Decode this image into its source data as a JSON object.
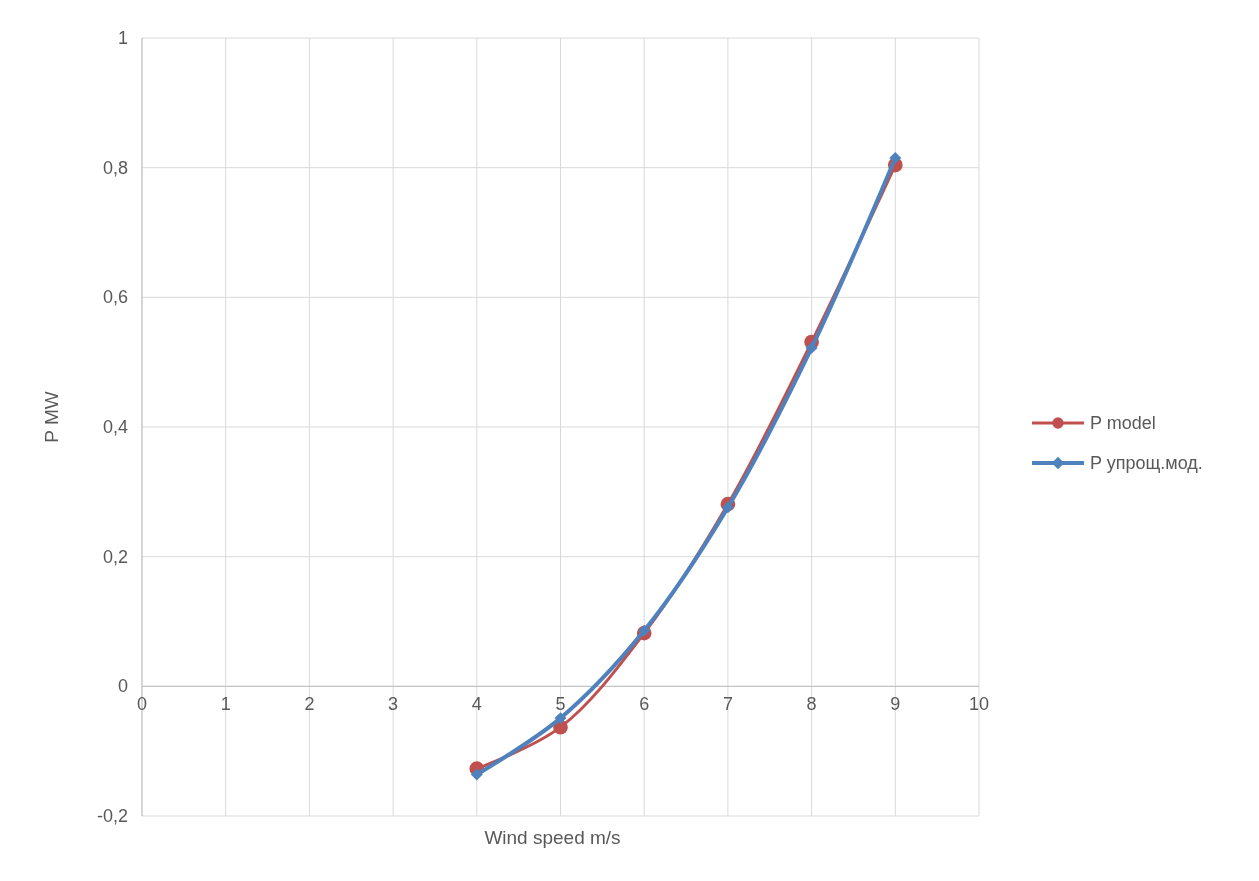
{
  "chart_data": {
    "type": "line",
    "xlabel": "Wind speed m/s",
    "ylabel": "P MW",
    "x": [
      4,
      5,
      6,
      7,
      8,
      9
    ],
    "series": [
      {
        "name": "P model",
        "color": "#c0504d",
        "marker": "circle",
        "values": [
          -0.127,
          -0.063,
          0.082,
          0.281,
          0.531,
          0.804
        ]
      },
      {
        "name": "P упрощ.мод.",
        "color": "#4f81bd",
        "marker": "diamond",
        "values": [
          -0.136,
          -0.049,
          0.086,
          0.276,
          0.522,
          0.815
        ]
      }
    ],
    "xlim": [
      0,
      10
    ],
    "xticks": [
      0,
      1,
      2,
      3,
      4,
      5,
      6,
      7,
      8,
      9,
      10
    ],
    "ylim": [
      -0.2,
      1
    ],
    "yticks": [
      {
        "value": -0.2,
        "label": "-0,2"
      },
      0,
      {
        "value": 0.2,
        "label": "0,2"
      },
      {
        "value": 0.4,
        "label": "0,4"
      },
      {
        "value": 0.6,
        "label": "0,6"
      },
      {
        "value": 0.8,
        "label": "0,8"
      },
      1
    ],
    "grid": true,
    "legend": "right"
  }
}
